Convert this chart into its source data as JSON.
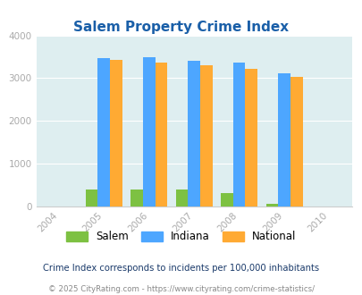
{
  "title": "Salem Property Crime Index",
  "years": [
    2005,
    2006,
    2007,
    2008,
    2009
  ],
  "salem": [
    400,
    400,
    395,
    305,
    65
  ],
  "indiana": [
    3460,
    3500,
    3415,
    3360,
    3110
  ],
  "national": [
    3430,
    3360,
    3295,
    3220,
    3040
  ],
  "xlim": [
    2003.5,
    2010.5
  ],
  "ylim": [
    0,
    4000
  ],
  "yticks": [
    0,
    1000,
    2000,
    3000,
    4000
  ],
  "color_salem": "#7dc142",
  "color_indiana": "#4da6ff",
  "color_national": "#ffaa33",
  "bg_color": "#deeef0",
  "title_color": "#1a5fa8",
  "title_fontsize": 11,
  "tick_label_color": "#aaaaaa",
  "ytick_label_color": "#aaaaaa",
  "footnote1": "Crime Index corresponds to incidents per 100,000 inhabitants",
  "footnote2": "© 2025 CityRating.com - https://www.cityrating.com/crime-statistics/",
  "bar_width": 0.27,
  "legend_labels": [
    "Salem",
    "Indiana",
    "National"
  ]
}
